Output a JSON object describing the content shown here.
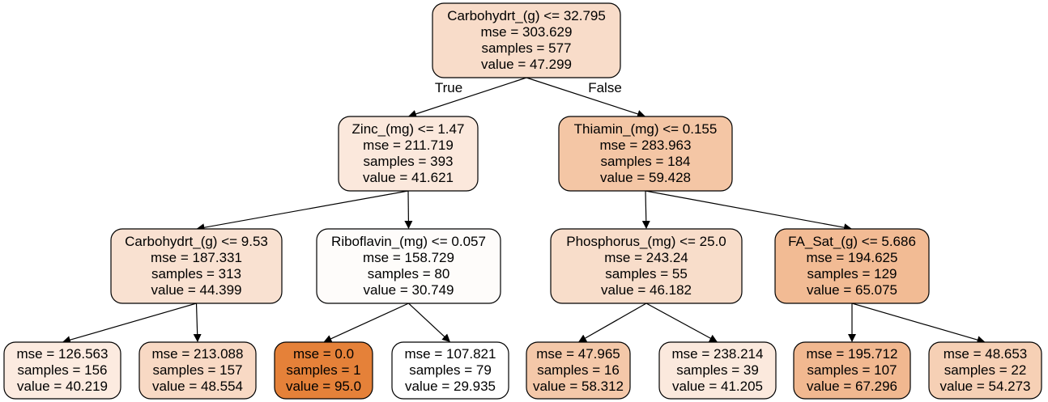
{
  "tree": {
    "nodes": [
      {
        "id": "n0",
        "lines": [
          "Carbohydrt_(g) <= 32.795",
          "mse = 303.629",
          "samples = 577",
          "value = 47.299"
        ],
        "fill": "#f8dcc9"
      },
      {
        "id": "n1",
        "lines": [
          "Zinc_(mg) <= 1.47",
          "mse = 211.719",
          "samples = 393",
          "value = 41.621"
        ],
        "fill": "#fbe8dc"
      },
      {
        "id": "n2",
        "lines": [
          "Thiamin_(mg) <= 0.155",
          "mse = 283.963",
          "samples = 184",
          "value = 59.428"
        ],
        "fill": "#f4c6a5"
      },
      {
        "id": "n3",
        "lines": [
          "Carbohydrt_(g) <= 9.53",
          "mse = 187.331",
          "samples = 313",
          "value = 44.399"
        ],
        "fill": "#f9e1d1"
      },
      {
        "id": "n4",
        "lines": [
          "Riboflavin_(mg) <= 0.057",
          "mse = 158.729",
          "samples = 80",
          "value = 30.749"
        ],
        "fill": "#fefcfa"
      },
      {
        "id": "n5",
        "lines": [
          "Phosphorus_(mg) <= 25.0",
          "mse = 243.24",
          "samples = 55",
          "value = 46.182"
        ],
        "fill": "#f8ddca"
      },
      {
        "id": "n6",
        "lines": [
          "FA_Sat_(g) <= 5.686",
          "mse = 194.625",
          "samples = 129",
          "value = 65.075"
        ],
        "fill": "#f2bb94"
      },
      {
        "id": "n7",
        "lines": [
          "mse = 126.563",
          "samples = 156",
          "value = 40.219"
        ],
        "fill": "#fcebe0"
      },
      {
        "id": "n8",
        "lines": [
          "mse = 213.088",
          "samples = 157",
          "value = 48.554"
        ],
        "fill": "#f8d9c4"
      },
      {
        "id": "n9",
        "lines": [
          "mse = 0.0",
          "samples = 1",
          "value = 95.0"
        ],
        "fill": "#e58139"
      },
      {
        "id": "n10",
        "lines": [
          "mse = 107.821",
          "samples = 79",
          "value = 29.935"
        ],
        "fill": "#ffffff"
      },
      {
        "id": "n11",
        "lines": [
          "mse = 47.965",
          "samples = 16",
          "value = 58.312"
        ],
        "fill": "#f4c8a9"
      },
      {
        "id": "n12",
        "lines": [
          "mse = 238.214",
          "samples = 39",
          "value = 41.205"
        ],
        "fill": "#fbe9dd"
      },
      {
        "id": "n13",
        "lines": [
          "mse = 195.712",
          "samples = 107",
          "value = 67.296"
        ],
        "fill": "#f1b890"
      },
      {
        "id": "n14",
        "lines": [
          "mse = 48.653",
          "samples = 22",
          "value = 54.273"
        ],
        "fill": "#f6d0b5"
      }
    ],
    "edges": [
      {
        "from": "n0",
        "to": "n1",
        "label": "True"
      },
      {
        "from": "n0",
        "to": "n2",
        "label": "False"
      },
      {
        "from": "n1",
        "to": "n3",
        "label": ""
      },
      {
        "from": "n1",
        "to": "n4",
        "label": ""
      },
      {
        "from": "n2",
        "to": "n5",
        "label": ""
      },
      {
        "from": "n2",
        "to": "n6",
        "label": ""
      },
      {
        "from": "n3",
        "to": "n7",
        "label": ""
      },
      {
        "from": "n3",
        "to": "n8",
        "label": ""
      },
      {
        "from": "n4",
        "to": "n9",
        "label": ""
      },
      {
        "from": "n4",
        "to": "n10",
        "label": ""
      },
      {
        "from": "n5",
        "to": "n11",
        "label": ""
      },
      {
        "from": "n5",
        "to": "n12",
        "label": ""
      },
      {
        "from": "n6",
        "to": "n13",
        "label": ""
      },
      {
        "from": "n6",
        "to": "n14",
        "label": ""
      }
    ]
  }
}
